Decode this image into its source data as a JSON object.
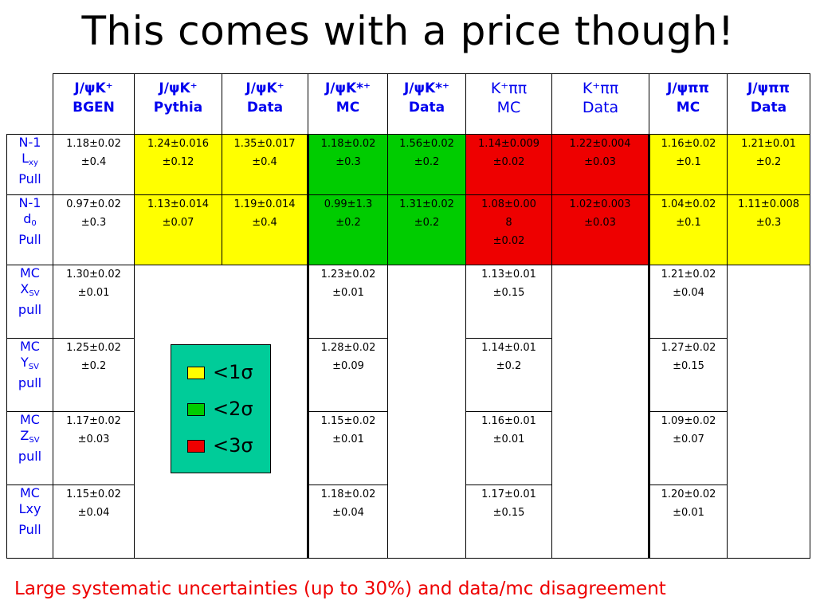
{
  "title": "This comes with a price though!",
  "colors": {
    "yellow": "#ffff00",
    "green": "#00cc00",
    "red": "#ee0000",
    "legend_bg": "#00cc99",
    "header_text": "#0000ee",
    "footer_text": "#ee0000"
  },
  "headers": [
    {
      "line1": "J/ψK⁺",
      "line2": "BGEN"
    },
    {
      "line1": "J/ψK⁺",
      "line2": "Pythia"
    },
    {
      "line1": "J/ψK⁺",
      "line2": "Data"
    },
    {
      "line1": "J/ψK*⁺",
      "line2": "MC"
    },
    {
      "line1": "J/ψK*⁺",
      "line2": "Data"
    },
    {
      "line1": "K⁺ππ",
      "line2": "MC"
    },
    {
      "line1": "K⁺ππ",
      "line2": "Data"
    },
    {
      "line1": "J/ψππ",
      "line2": "MC"
    },
    {
      "line1": "J/ψππ",
      "line2": "Data"
    }
  ],
  "rows": [
    {
      "label": {
        "l1": "N-1",
        "l2": "L",
        "l2_sub": "xy",
        "l3": "Pull"
      },
      "cells": [
        {
          "v1": "1.18±0.02",
          "v2": "±0.4",
          "color": "white"
        },
        {
          "v1": "1.24±0.016",
          "v2": "±0.12",
          "color": "yellow"
        },
        {
          "v1": "1.35±0.017",
          "v2": "±0.4",
          "color": "yellow"
        },
        {
          "v1": "1.18±0.02",
          "v2": "±0.3",
          "color": "green"
        },
        {
          "v1": "1.56±0.02",
          "v2": "±0.2",
          "color": "green"
        },
        {
          "v1": "1.14±0.009",
          "v2": "±0.02",
          "color": "red"
        },
        {
          "v1": "1.22±0.004",
          "v2": "±0.03",
          "color": "red"
        },
        {
          "v1": "1.16±0.02",
          "v2": "±0.1",
          "color": "yellow"
        },
        {
          "v1": "1.21±0.01",
          "v2": "±0.2",
          "color": "yellow"
        }
      ]
    },
    {
      "label": {
        "l1": "N-1",
        "l2": "d",
        "l2_sub": "0",
        "l3": "Pull"
      },
      "cells": [
        {
          "v1": "0.97±0.02",
          "v2": "±0.3",
          "color": "white"
        },
        {
          "v1": "1.13±0.014",
          "v2": "±0.07",
          "color": "yellow"
        },
        {
          "v1": "1.19±0.014",
          "v2": "±0.4",
          "color": "yellow"
        },
        {
          "v1": "0.99±1.3",
          "v2": "±0.2",
          "color": "green"
        },
        {
          "v1": "1.31±0.02",
          "v2": "±0.2",
          "color": "green"
        },
        {
          "v1": "1.08±0.00",
          "v2": "8",
          "v3": "±0.02",
          "color": "red"
        },
        {
          "v1": "1.02±0.003",
          "v2": "±0.03",
          "color": "red"
        },
        {
          "v1": "1.04±0.02",
          "v2": "±0.1",
          "color": "yellow"
        },
        {
          "v1": "1.11±0.008",
          "v2": "±0.3",
          "color": "yellow"
        }
      ]
    },
    {
      "label": {
        "l1": "MC",
        "l2": "X",
        "l2_sub": "SV",
        "l3": "pull"
      },
      "cells": [
        {
          "v1": "1.30±0.02",
          "v2": "±0.01"
        },
        null,
        null,
        {
          "v1": "1.23±0.02",
          "v2": "±0.01"
        },
        null,
        {
          "v1": "1.13±0.01",
          "v2": "±0.15"
        },
        null,
        {
          "v1": "1.21±0.02",
          "v2": "±0.04"
        },
        null
      ]
    },
    {
      "label": {
        "l1": "MC",
        "l2": "Y",
        "l2_sub": "SV",
        "l3": "pull"
      },
      "cells": [
        {
          "v1": "1.25±0.02",
          "v2": "±0.2"
        },
        null,
        null,
        {
          "v1": "1.28±0.02",
          "v2": "±0.09"
        },
        null,
        {
          "v1": "1.14±0.01",
          "v2": "±0.2"
        },
        null,
        {
          "v1": "1.27±0.02",
          "v2": "±0.15"
        },
        null
      ]
    },
    {
      "label": {
        "l1": "MC",
        "l2": "Z",
        "l2_sub": "SV",
        "l3": "pull"
      },
      "cells": [
        {
          "v1": "1.17±0.02",
          "v2": "±0.03"
        },
        null,
        null,
        {
          "v1": "1.15±0.02",
          "v2": "±0.01"
        },
        null,
        {
          "v1": "1.16±0.01",
          "v2": "±0.01"
        },
        null,
        {
          "v1": "1.09±0.02",
          "v2": "±0.07"
        },
        null
      ]
    },
    {
      "label": {
        "l1": "MC",
        "l2": "Lxy",
        "l2_sub": "",
        "l3": "Pull"
      },
      "cells": [
        {
          "v1": "1.15±0.02",
          "v2": "±0.04"
        },
        null,
        null,
        {
          "v1": "1.18±0.02",
          "v2": "±0.04"
        },
        null,
        {
          "v1": "1.17±0.01",
          "v2": "±0.15"
        },
        null,
        {
          "v1": "1.20±0.02",
          "v2": "±0.01"
        },
        null
      ]
    }
  ],
  "legend": [
    {
      "label": "<1σ",
      "color": "yellow"
    },
    {
      "label": "<2σ",
      "color": "green"
    },
    {
      "label": "<3σ",
      "color": "red"
    }
  ],
  "footer": "Large systematic uncertainties (up to 30%) and data/mc disagreement"
}
